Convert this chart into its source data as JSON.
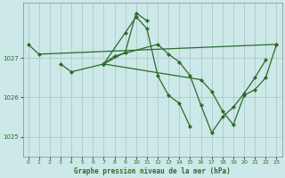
{
  "title": "Graphe pression niveau de la mer (hPa)",
  "bg_color": "#cce8e8",
  "plot_bg_color": "#cce8e8",
  "grid_color": "#b0c8c8",
  "line_color": "#2a6b2a",
  "marker_color": "#2a6b2a",
  "xlim": [
    -0.5,
    23.5
  ],
  "ylim": [
    1024.5,
    1028.4
  ],
  "yticks": [
    1025,
    1026,
    1027
  ],
  "xticks": [
    0,
    1,
    2,
    3,
    4,
    5,
    6,
    7,
    8,
    9,
    10,
    11,
    12,
    13,
    14,
    15,
    16,
    17,
    18,
    19,
    20,
    21,
    22,
    23
  ],
  "series": [
    {
      "x": [
        0,
        1,
        23
      ],
      "y": [
        1027.35,
        1027.1,
        1027.35
      ]
    },
    {
      "x": [
        3,
        4,
        7,
        9,
        10,
        11,
        12,
        13,
        14,
        15
      ],
      "y": [
        1026.85,
        1026.65,
        1026.85,
        1027.65,
        1028.05,
        1027.75,
        1026.55,
        1026.05,
        1025.85,
        1025.25
      ]
    },
    {
      "x": [
        7,
        9,
        10,
        11
      ],
      "y": [
        1026.85,
        1027.15,
        1028.15,
        1027.95
      ]
    },
    {
      "x": [
        7,
        8,
        12,
        13,
        14,
        15,
        16,
        17,
        18,
        19,
        20,
        21,
        22
      ],
      "y": [
        1026.85,
        1027.05,
        1027.35,
        1027.1,
        1026.9,
        1026.55,
        1025.8,
        1025.1,
        1025.5,
        1025.75,
        1026.1,
        1026.5,
        1026.95
      ]
    },
    {
      "x": [
        7,
        16,
        17,
        18,
        19,
        20,
        21,
        22,
        23
      ],
      "y": [
        1026.85,
        1026.45,
        1026.15,
        1025.65,
        1025.3,
        1026.05,
        1026.2,
        1026.5,
        1027.35
      ]
    }
  ]
}
